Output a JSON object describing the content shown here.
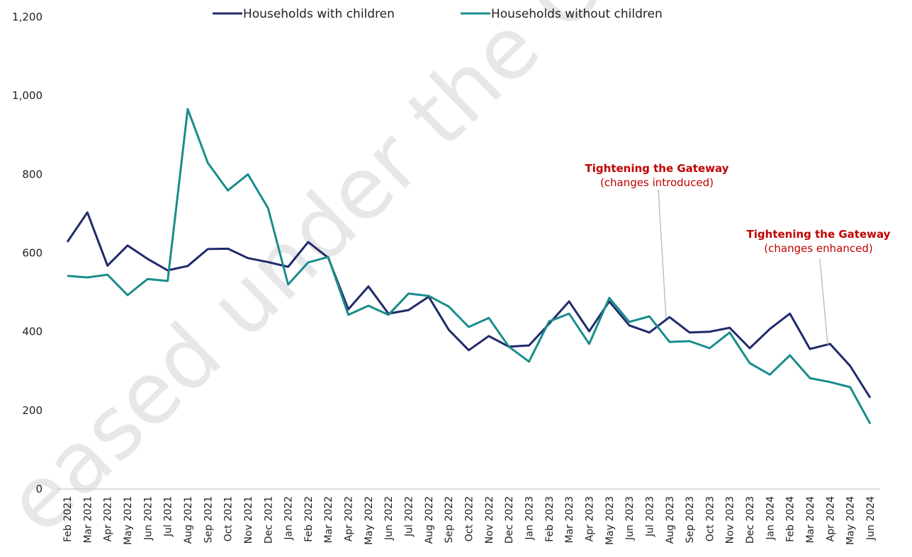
{
  "chart_data": {
    "type": "line",
    "categories": [
      "Feb 2021",
      "Mar 2021",
      "Apr 2021",
      "May 2021",
      "Jun 2021",
      "Jul 2021",
      "Aug 2021",
      "Sep 2021",
      "Oct 2021",
      "Nov 2021",
      "Dec 2021",
      "Jan 2022",
      "Feb 2022",
      "Mar 2022",
      "Apr 2022",
      "May 2022",
      "Jun 2022",
      "Jul 2022",
      "Aug 2022",
      "Sep 2022",
      "Oct 2022",
      "Nov 2022",
      "Dec 2022",
      "Jan 2023",
      "Feb 2023",
      "Mar 2023",
      "Apr 2023",
      "May 2023",
      "Jun 2023",
      "Jul 2023",
      "Aug 2023",
      "Sep 2023",
      "Oct 2023",
      "Nov 2023",
      "Dec 2023",
      "Jan 2024",
      "Feb 2024",
      "Mar 2024",
      "Apr 2024",
      "May 2024",
      "Jun 2024"
    ],
    "series": [
      {
        "name": "Households with children",
        "color": "#1f2a6b",
        "values": [
          628,
          703,
          568,
          619,
          585,
          556,
          567,
          610,
          611,
          587,
          577,
          565,
          628,
          588,
          457,
          515,
          446,
          455,
          489,
          405,
          353,
          389,
          362,
          365,
          420,
          477,
          401,
          477,
          416,
          398,
          437,
          398,
          400,
          410,
          358,
          407,
          446,
          356,
          369,
          313,
          232
        ]
      },
      {
        "name": "Households without children",
        "color": "#1a8c8c",
        "values": [
          542,
          538,
          545,
          493,
          534,
          529,
          966,
          829,
          759,
          800,
          714,
          520,
          576,
          590,
          443,
          466,
          443,
          497,
          491,
          464,
          412,
          435,
          362,
          324,
          426,
          446,
          369,
          486,
          425,
          439,
          374,
          376,
          358,
          398,
          320,
          291,
          340,
          282,
          272,
          259,
          166
        ]
      }
    ],
    "ylim": [
      0,
      1200
    ],
    "yticks": [
      0,
      200,
      400,
      600,
      800,
      {
        "value": 1000,
        "label": "1,000"
      },
      {
        "value": 1200,
        "label": "1,200"
      }
    ],
    "grid": false,
    "legend": "top",
    "annotations": [
      {
        "title": "Tightening the Gateway",
        "subtitle": "(changes introduced)"
      },
      {
        "title": "Tightening the Gateway",
        "subtitle": "(changes enhanced)"
      }
    ],
    "watermark": "eased under the Official I"
  }
}
